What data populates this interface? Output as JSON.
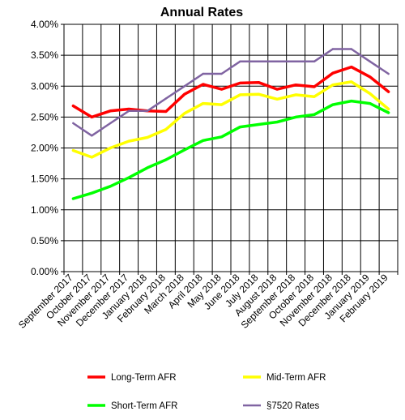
{
  "chart_data": {
    "type": "line",
    "title": "Annual Rates",
    "xlabel": "",
    "ylabel": "",
    "categories": [
      "September 2017",
      "October 2017",
      "November 2017",
      "December 2017",
      "January 2018",
      "February 2018",
      "March 2018",
      "April 2018",
      "May 2018",
      "June 2018",
      "July 2018",
      "August 2018",
      "September 2018",
      "October 2018",
      "November 2018",
      "December 2018",
      "January 2019",
      "February 2019"
    ],
    "y_ticks": [
      "0.00%",
      "0.50%",
      "1.00%",
      "1.50%",
      "2.00%",
      "2.50%",
      "3.00%",
      "3.50%",
      "4.00%"
    ],
    "ylim": [
      0,
      4
    ],
    "grid": true,
    "legend_placement": "bottom",
    "series": [
      {
        "name": "Long-Term AFR",
        "color": "#ff0000",
        "values": [
          2.68,
          2.5,
          2.6,
          2.63,
          2.6,
          2.59,
          2.87,
          3.03,
          2.95,
          3.05,
          3.06,
          2.95,
          3.02,
          2.99,
          3.21,
          3.31,
          3.15,
          2.91
        ]
      },
      {
        "name": "Mid-Term AFR",
        "color": "#ffff00",
        "values": [
          1.96,
          1.85,
          2.0,
          2.11,
          2.17,
          2.3,
          2.56,
          2.72,
          2.7,
          2.86,
          2.87,
          2.79,
          2.86,
          2.83,
          3.02,
          3.07,
          2.88,
          2.63
        ]
      },
      {
        "name": "Short-Term AFR",
        "color": "#00ff00",
        "values": [
          1.18,
          1.27,
          1.38,
          1.52,
          1.68,
          1.81,
          1.97,
          2.12,
          2.18,
          2.34,
          2.38,
          2.42,
          2.5,
          2.54,
          2.7,
          2.76,
          2.72,
          2.57
        ]
      },
      {
        "name": "§7520 Rates",
        "color": "#8064a2",
        "values": [
          2.4,
          2.2,
          2.4,
          2.6,
          2.6,
          2.8,
          3.0,
          3.2,
          3.2,
          3.4,
          3.4,
          3.4,
          3.4,
          3.4,
          3.6,
          3.6,
          3.4,
          3.2
        ]
      }
    ]
  }
}
